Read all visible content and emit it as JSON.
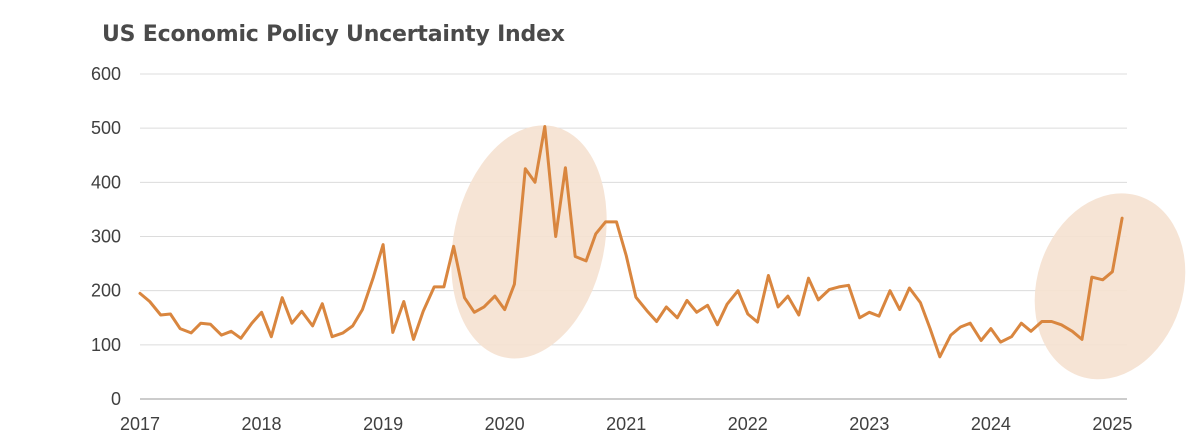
{
  "chart_data": {
    "type": "line",
    "title": "US Economic Policy Uncertainty Index",
    "xlabel": "",
    "ylabel": "",
    "ylim": [
      0,
      600
    ],
    "yticks": [
      0,
      100,
      200,
      300,
      400,
      500,
      600
    ],
    "xlim": [
      2017,
      2025.12
    ],
    "xticks": [
      "2017",
      "2018",
      "2019",
      "2020",
      "2021",
      "2022",
      "2023",
      "2024",
      "2025"
    ],
    "grid": "horizontal",
    "line_color": "#d9863f",
    "highlight_color": "#f5e1d0",
    "annotations": [
      {
        "type": "ellipse-highlight",
        "period": "2020 peak",
        "x_center": 2020.2,
        "y_center": 290,
        "x_radius": 0.62,
        "y_radius": 218,
        "rotation_deg": 12
      },
      {
        "type": "ellipse-highlight",
        "period": "2025 surge",
        "x_center": 2024.98,
        "y_center": 208,
        "x_radius": 0.6,
        "y_radius": 175,
        "rotation_deg": 18
      }
    ],
    "series": [
      {
        "name": "US Economic Policy Uncertainty Index",
        "x": [
          2017.0,
          2017.08,
          2017.17,
          2017.25,
          2017.33,
          2017.42,
          2017.5,
          2017.58,
          2017.67,
          2017.75,
          2017.83,
          2017.92,
          2018.0,
          2018.08,
          2018.17,
          2018.25,
          2018.33,
          2018.42,
          2018.5,
          2018.58,
          2018.67,
          2018.75,
          2018.83,
          2018.92,
          2019.0,
          2019.08,
          2019.17,
          2019.25,
          2019.33,
          2019.42,
          2019.5,
          2019.58,
          2019.67,
          2019.75,
          2019.83,
          2019.92,
          2020.0,
          2020.08,
          2020.17,
          2020.25,
          2020.33,
          2020.42,
          2020.5,
          2020.58,
          2020.67,
          2020.75,
          2020.83,
          2020.92,
          2021.0,
          2021.08,
          2021.17,
          2021.25,
          2021.33,
          2021.42,
          2021.5,
          2021.58,
          2021.67,
          2021.75,
          2021.83,
          2021.92,
          2022.0,
          2022.08,
          2022.17,
          2022.25,
          2022.33,
          2022.42,
          2022.5,
          2022.58,
          2022.67,
          2022.75,
          2022.83,
          2022.92,
          2023.0,
          2023.08,
          2023.17,
          2023.25,
          2023.33,
          2023.42,
          2023.5,
          2023.58,
          2023.67,
          2023.75,
          2023.83,
          2023.92,
          2024.0,
          2024.08,
          2024.17,
          2024.25,
          2024.33,
          2024.42,
          2024.5,
          2024.58,
          2024.67,
          2024.75,
          2024.83,
          2024.92,
          2025.0,
          2025.08
        ],
        "values": [
          195,
          180,
          155,
          157,
          130,
          122,
          140,
          138,
          118,
          125,
          112,
          140,
          160,
          115,
          187,
          140,
          162,
          135,
          176,
          115,
          122,
          135,
          165,
          225,
          285,
          123,
          180,
          110,
          162,
          207,
          207,
          282,
          187,
          160,
          170,
          190,
          165,
          212,
          425,
          400,
          503,
          300,
          427,
          263,
          255,
          305,
          327,
          327,
          265,
          188,
          163,
          143,
          170,
          150,
          182,
          160,
          173,
          137,
          175,
          200,
          157,
          142,
          228,
          170,
          190,
          155,
          223,
          183,
          202,
          207,
          210,
          150,
          160,
          153,
          200,
          165,
          205,
          178,
          130,
          78,
          118,
          133,
          140,
          108,
          130,
          105,
          115,
          140,
          125,
          143,
          143,
          137,
          125,
          110,
          225,
          220,
          235,
          334
        ]
      }
    ]
  }
}
